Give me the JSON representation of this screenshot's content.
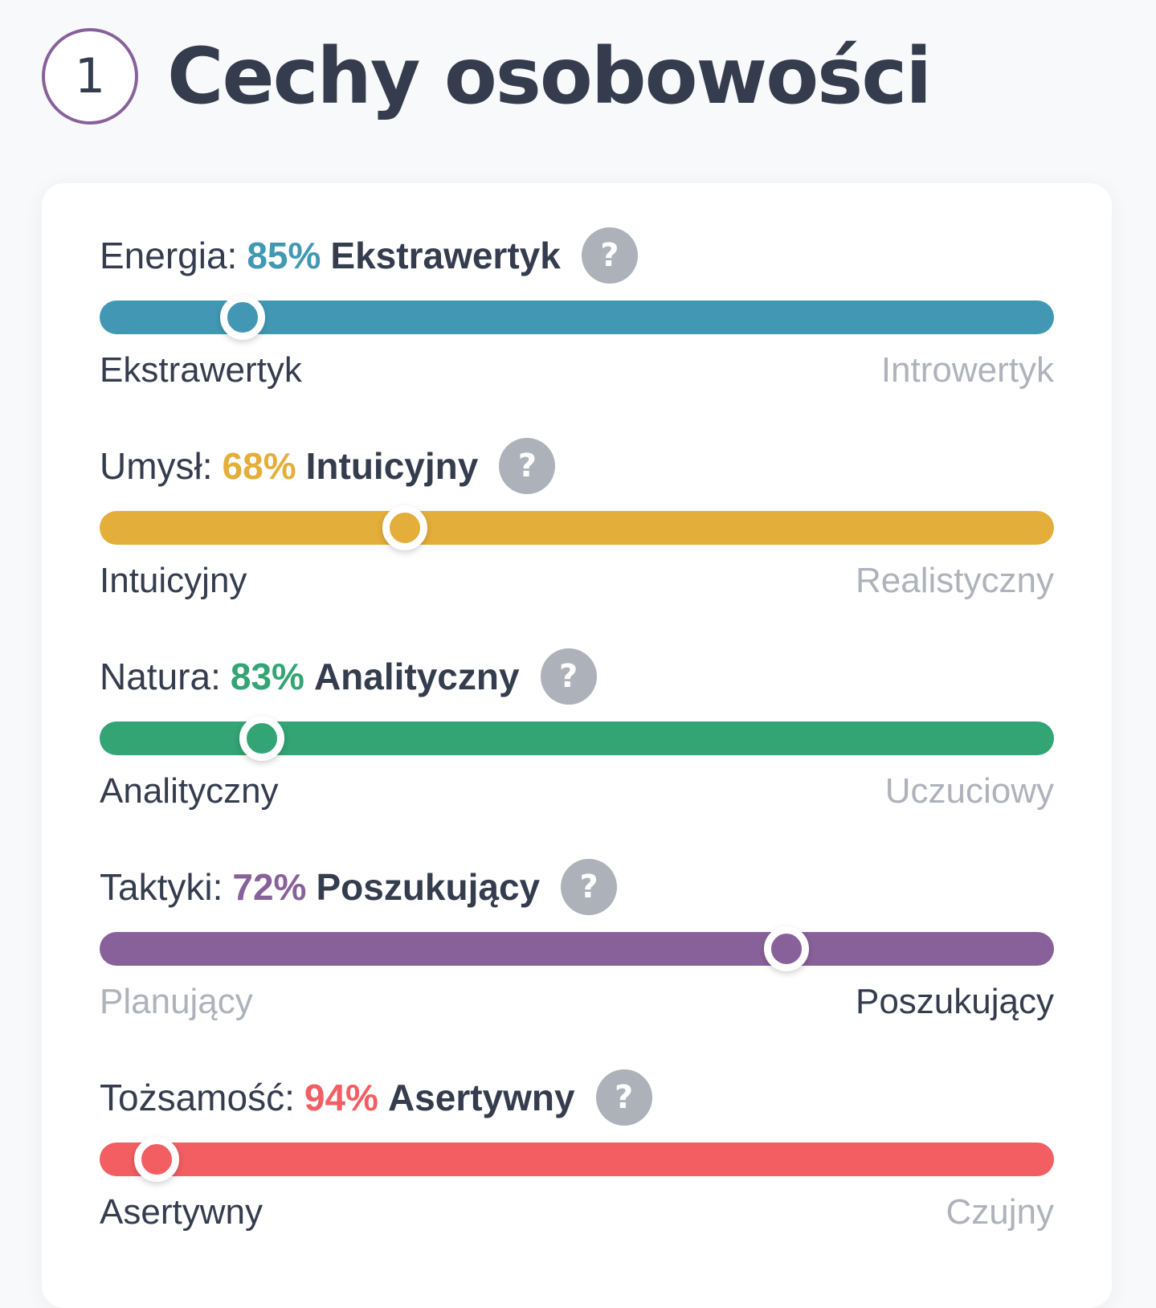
{
  "header": {
    "step_number": "1",
    "title": "Cechy osobowości",
    "accent_color": "#88619a"
  },
  "traits": [
    {
      "name": "Energia:",
      "percent": "85%",
      "result": "Ekstrawertyk",
      "color": "#4298b4",
      "position_fraction": 0.15,
      "left_label": "Ekstrawertyk",
      "right_label": "Introwertyk",
      "active_side": "left",
      "help_icon": "question-icon"
    },
    {
      "name": "Umysł:",
      "percent": "68%",
      "result": "Intuicyjny",
      "color": "#e4ae3a",
      "position_fraction": 0.32,
      "left_label": "Intuicyjny",
      "right_label": "Realistyczny",
      "active_side": "left",
      "help_icon": "question-icon"
    },
    {
      "name": "Natura:",
      "percent": "83%",
      "result": "Analityczny",
      "color": "#33a474",
      "position_fraction": 0.17,
      "left_label": "Analityczny",
      "right_label": "Uczuciowy",
      "active_side": "left",
      "help_icon": "question-icon"
    },
    {
      "name": "Taktyki:",
      "percent": "72%",
      "result": "Poszukujący",
      "color": "#88619a",
      "position_fraction": 0.72,
      "left_label": "Planujący",
      "right_label": "Poszukujący",
      "active_side": "right",
      "help_icon": "question-icon"
    },
    {
      "name": "Tożsamość:",
      "percent": "94%",
      "result": "Asertywny",
      "color": "#f25e62",
      "position_fraction": 0.06,
      "left_label": "Asertywny",
      "right_label": "Czujny",
      "active_side": "left",
      "help_icon": "question-icon"
    }
  ],
  "help_glyph": "?"
}
